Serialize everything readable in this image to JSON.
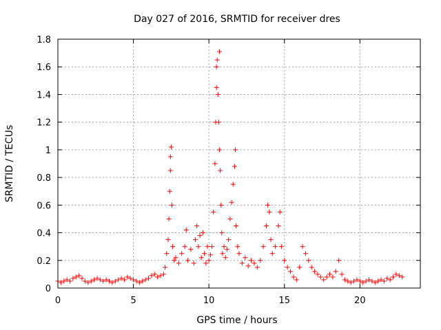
{
  "chart_data": {
    "type": "scatter",
    "title": "Day 027 of 2016, SRMTID for receiver dres",
    "xlabel": "GPS time / hours",
    "ylabel": "SRMTID / TECUs",
    "xlim": [
      0,
      24
    ],
    "ylim": [
      0,
      1.8
    ],
    "xticks": [
      0,
      5,
      10,
      15,
      20
    ],
    "xtick_labels": [
      "0",
      "5",
      "10",
      "15",
      "20"
    ],
    "yticks": [
      0,
      0.2,
      0.4,
      0.6,
      0.8,
      1,
      1.2,
      1.4,
      1.6,
      1.8
    ],
    "ytick_labels": [
      "0",
      "0.2",
      "0.4",
      "0.6",
      "0.8",
      "1",
      "1.2",
      "1.4",
      "1.6",
      "1.8"
    ],
    "grid": true,
    "marker": "+",
    "color": "#ff0000",
    "series": [
      {
        "name": "SRMTID",
        "points": [
          [
            0.0,
            0.05
          ],
          [
            0.2,
            0.04
          ],
          [
            0.4,
            0.05
          ],
          [
            0.6,
            0.06
          ],
          [
            0.8,
            0.05
          ],
          [
            1.0,
            0.07
          ],
          [
            1.2,
            0.08
          ],
          [
            1.4,
            0.09
          ],
          [
            1.6,
            0.07
          ],
          [
            1.8,
            0.05
          ],
          [
            2.0,
            0.04
          ],
          [
            2.2,
            0.05
          ],
          [
            2.4,
            0.06
          ],
          [
            2.6,
            0.07
          ],
          [
            2.8,
            0.06
          ],
          [
            3.0,
            0.05
          ],
          [
            3.2,
            0.06
          ],
          [
            3.4,
            0.05
          ],
          [
            3.6,
            0.04
          ],
          [
            3.8,
            0.05
          ],
          [
            4.0,
            0.06
          ],
          [
            4.2,
            0.07
          ],
          [
            4.4,
            0.06
          ],
          [
            4.6,
            0.08
          ],
          [
            4.8,
            0.07
          ],
          [
            5.0,
            0.06
          ],
          [
            5.2,
            0.05
          ],
          [
            5.4,
            0.04
          ],
          [
            5.6,
            0.05
          ],
          [
            5.8,
            0.06
          ],
          [
            6.0,
            0.07
          ],
          [
            6.2,
            0.09
          ],
          [
            6.4,
            0.1
          ],
          [
            6.6,
            0.08
          ],
          [
            6.8,
            0.09
          ],
          [
            7.0,
            0.1
          ],
          [
            7.1,
            0.15
          ],
          [
            7.2,
            0.25
          ],
          [
            7.3,
            0.35
          ],
          [
            7.35,
            0.5
          ],
          [
            7.4,
            0.7
          ],
          [
            7.45,
            0.85
          ],
          [
            7.45,
            0.95
          ],
          [
            7.5,
            1.02
          ],
          [
            7.55,
            0.6
          ],
          [
            7.6,
            0.3
          ],
          [
            7.7,
            0.2
          ],
          [
            7.8,
            0.22
          ],
          [
            8.0,
            0.18
          ],
          [
            8.2,
            0.25
          ],
          [
            8.4,
            0.3
          ],
          [
            8.5,
            0.42
          ],
          [
            8.6,
            0.2
          ],
          [
            8.8,
            0.28
          ],
          [
            9.0,
            0.18
          ],
          [
            9.1,
            0.35
          ],
          [
            9.2,
            0.45
          ],
          [
            9.3,
            0.3
          ],
          [
            9.4,
            0.38
          ],
          [
            9.5,
            0.22
          ],
          [
            9.6,
            0.4
          ],
          [
            9.7,
            0.25
          ],
          [
            9.8,
            0.18
          ],
          [
            9.9,
            0.3
          ],
          [
            10.0,
            0.2
          ],
          [
            10.1,
            0.24
          ],
          [
            10.2,
            0.3
          ],
          [
            10.3,
            0.55
          ],
          [
            10.4,
            0.9
          ],
          [
            10.45,
            1.2
          ],
          [
            10.5,
            1.45
          ],
          [
            10.5,
            1.6
          ],
          [
            10.55,
            1.65
          ],
          [
            10.6,
            1.4
          ],
          [
            10.65,
            1.2
          ],
          [
            10.7,
            1.0
          ],
          [
            10.7,
            1.71
          ],
          [
            10.75,
            0.85
          ],
          [
            10.8,
            0.6
          ],
          [
            10.85,
            0.4
          ],
          [
            10.9,
            0.25
          ],
          [
            11.0,
            0.3
          ],
          [
            11.1,
            0.22
          ],
          [
            11.2,
            0.28
          ],
          [
            11.3,
            0.35
          ],
          [
            11.4,
            0.5
          ],
          [
            11.5,
            0.62
          ],
          [
            11.6,
            0.75
          ],
          [
            11.7,
            0.88
          ],
          [
            11.75,
            1.0
          ],
          [
            11.8,
            0.45
          ],
          [
            11.9,
            0.3
          ],
          [
            12.0,
            0.25
          ],
          [
            12.2,
            0.18
          ],
          [
            12.4,
            0.22
          ],
          [
            12.6,
            0.16
          ],
          [
            12.8,
            0.2
          ],
          [
            13.0,
            0.18
          ],
          [
            13.2,
            0.15
          ],
          [
            13.4,
            0.2
          ],
          [
            13.6,
            0.3
          ],
          [
            13.8,
            0.45
          ],
          [
            13.9,
            0.6
          ],
          [
            14.0,
            0.55
          ],
          [
            14.1,
            0.35
          ],
          [
            14.2,
            0.25
          ],
          [
            14.4,
            0.3
          ],
          [
            14.6,
            0.45
          ],
          [
            14.7,
            0.55
          ],
          [
            14.8,
            0.3
          ],
          [
            15.0,
            0.2
          ],
          [
            15.2,
            0.15
          ],
          [
            15.4,
            0.12
          ],
          [
            15.6,
            0.08
          ],
          [
            15.8,
            0.06
          ],
          [
            16.0,
            0.15
          ],
          [
            16.2,
            0.3
          ],
          [
            16.4,
            0.25
          ],
          [
            16.6,
            0.2
          ],
          [
            16.8,
            0.15
          ],
          [
            17.0,
            0.12
          ],
          [
            17.2,
            0.1
          ],
          [
            17.4,
            0.08
          ],
          [
            17.6,
            0.06
          ],
          [
            17.8,
            0.08
          ],
          [
            18.0,
            0.1
          ],
          [
            18.2,
            0.08
          ],
          [
            18.4,
            0.12
          ],
          [
            18.6,
            0.2
          ],
          [
            18.8,
            0.1
          ],
          [
            19.0,
            0.06
          ],
          [
            19.2,
            0.05
          ],
          [
            19.4,
            0.04
          ],
          [
            19.6,
            0.05
          ],
          [
            19.8,
            0.06
          ],
          [
            20.0,
            0.05
          ],
          [
            20.2,
            0.04
          ],
          [
            20.4,
            0.05
          ],
          [
            20.6,
            0.06
          ],
          [
            20.8,
            0.05
          ],
          [
            21.0,
            0.04
          ],
          [
            21.2,
            0.05
          ],
          [
            21.4,
            0.06
          ],
          [
            21.6,
            0.05
          ],
          [
            21.8,
            0.07
          ],
          [
            22.0,
            0.06
          ],
          [
            22.2,
            0.08
          ],
          [
            22.4,
            0.1
          ],
          [
            22.6,
            0.09
          ],
          [
            22.8,
            0.08
          ]
        ]
      }
    ]
  }
}
